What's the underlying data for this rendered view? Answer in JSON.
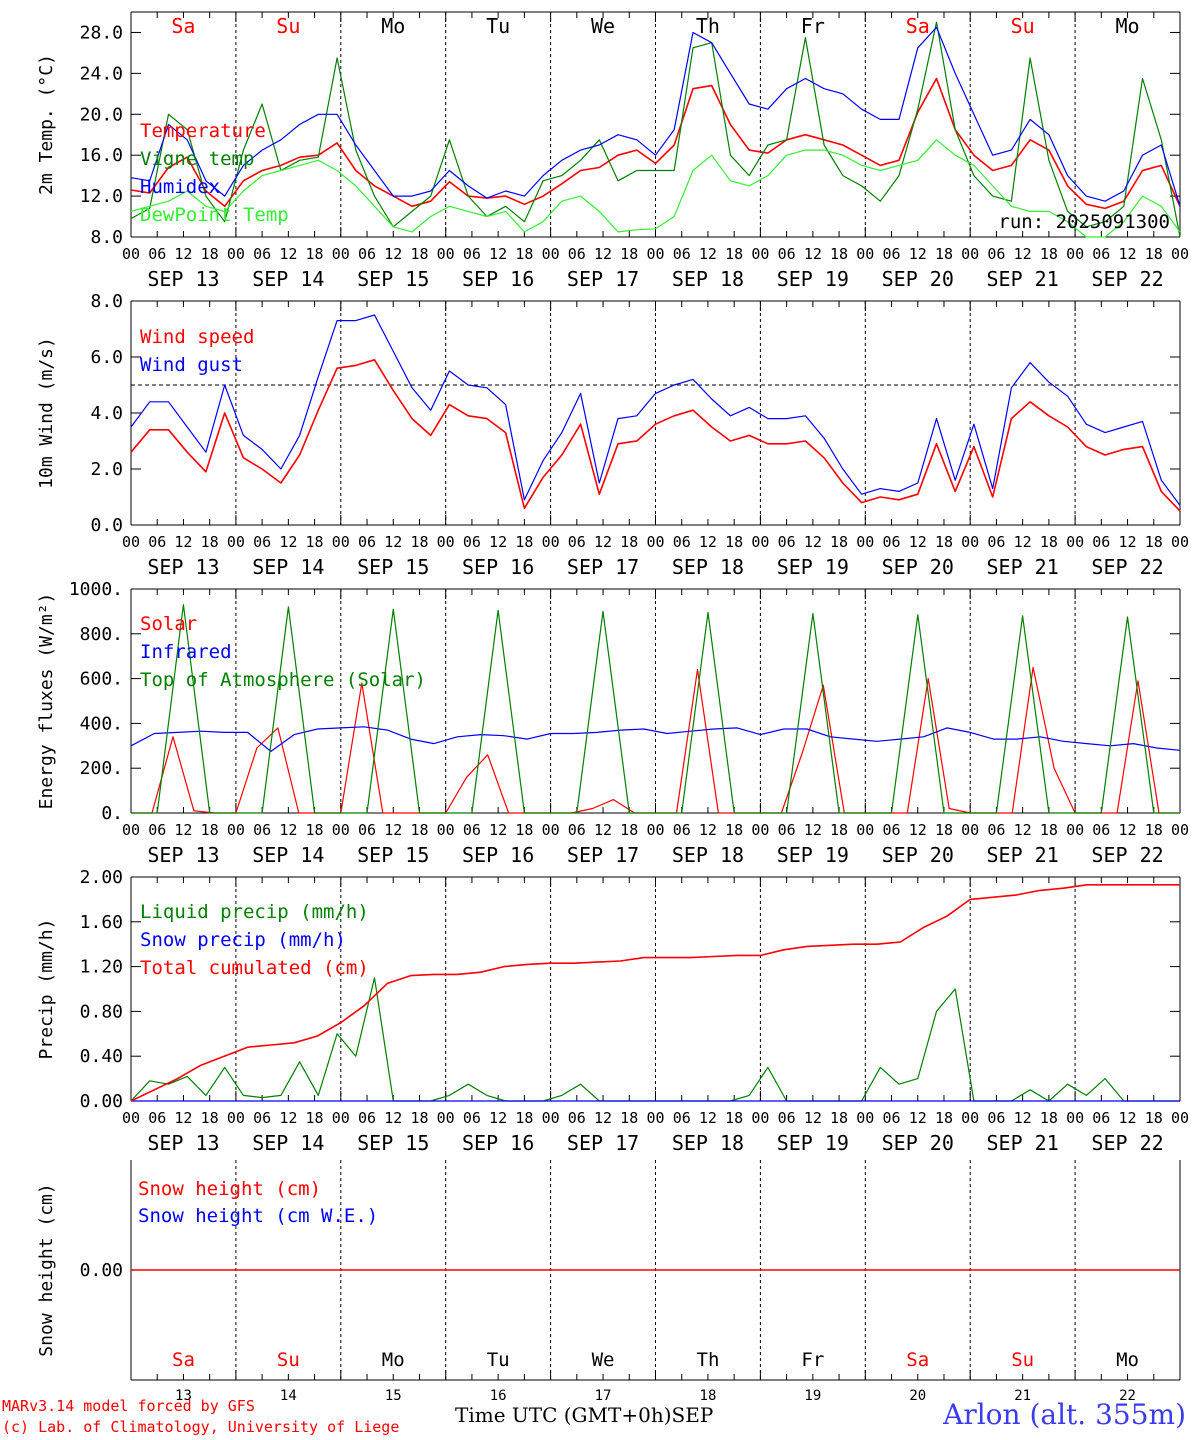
{
  "station": "Arlon (alt. 355m)",
  "credits": [
    "MARv3.14 model forced by GFS",
    "(c) Lab. of Climatology, University of Liege"
  ],
  "x_axis_title": "Time UTC (GMT+0h)",
  "month_label": "SEP",
  "hour_ticks": [
    "00",
    "06",
    "12",
    "18"
  ],
  "days": [
    {
      "date": "SEP 13",
      "num": "13",
      "abbr": "Sa",
      "weekend": true
    },
    {
      "date": "SEP 14",
      "num": "14",
      "abbr": "Su",
      "weekend": true
    },
    {
      "date": "SEP 15",
      "num": "15",
      "abbr": "Mo",
      "weekend": false
    },
    {
      "date": "SEP 16",
      "num": "16",
      "abbr": "Tu",
      "weekend": false
    },
    {
      "date": "SEP 17",
      "num": "17",
      "abbr": "We",
      "weekend": false
    },
    {
      "date": "SEP 18",
      "num": "18",
      "abbr": "Th",
      "weekend": false
    },
    {
      "date": "SEP 19",
      "num": "19",
      "abbr": "Fr",
      "weekend": false
    },
    {
      "date": "SEP 20",
      "num": "20",
      "abbr": "Sa",
      "weekend": true
    },
    {
      "date": "SEP 21",
      "num": "21",
      "abbr": "Su",
      "weekend": true
    },
    {
      "date": "SEP 22",
      "num": "22",
      "abbr": "Mo",
      "weekend": false
    }
  ],
  "colors": {
    "red": "#ff0000",
    "green": "#008000",
    "lightgreen": "#33ee33",
    "blue": "#0000ff",
    "black": "#000000"
  },
  "chart_data": [
    {
      "type": "line",
      "ylabel": "2m Temp. (°C)",
      "ylim": [
        8,
        30
      ],
      "yticks": [
        "8.0",
        "12.0",
        "16.0",
        "20.0",
        "24.0",
        "28.0"
      ],
      "ytick_values": [
        8,
        12,
        16,
        20,
        24,
        28
      ],
      "annotation": "run: 2025091300",
      "show_day_abbr_top": true,
      "x_step_hours": 6,
      "series": [
        {
          "name": "Temperature",
          "color": "red",
          "values": [
            12.6,
            12.3,
            14.8,
            15.8,
            12.5,
            11.0,
            13.5,
            14.5,
            15.0,
            15.8,
            16.0,
            17.2,
            14.5,
            13.0,
            12.0,
            11.0,
            11.5,
            13.4,
            12.0,
            11.8,
            12.0,
            11.2,
            12.0,
            13.2,
            14.5,
            14.8,
            16.0,
            16.5,
            15.2,
            17.0,
            22.5,
            22.8,
            19.0,
            16.5,
            16.2,
            17.5,
            18.0,
            17.5,
            17.0,
            16.0,
            15.0,
            15.5,
            20.2,
            23.5,
            18.5,
            16.0,
            14.5,
            15.0,
            17.5,
            16.5,
            13.0,
            11.2,
            10.8,
            11.5,
            14.5,
            15.0,
            11.0
          ]
        },
        {
          "name": "Vigne temp",
          "color": "green",
          "values": [
            9.8,
            10.8,
            20.0,
            18.5,
            12.0,
            9.5,
            16.5,
            21.0,
            14.5,
            15.5,
            15.8,
            25.5,
            16.5,
            12.0,
            9.0,
            10.5,
            12.0,
            17.5,
            12.0,
            10.0,
            11.0,
            9.5,
            13.5,
            14.0,
            15.5,
            17.5,
            13.5,
            14.5,
            14.5,
            14.5,
            26.5,
            27.0,
            16.0,
            14.0,
            17.0,
            17.5,
            27.5,
            17.0,
            14.0,
            13.0,
            11.5,
            14.0,
            20.5,
            29.0,
            18.5,
            14.0,
            12.0,
            11.5,
            25.5,
            15.5,
            10.5,
            9.0,
            9.5,
            11.0,
            23.5,
            17.5,
            8.0
          ]
        },
        {
          "name": "Humidex",
          "color": "blue",
          "values": [
            13.8,
            13.5,
            19.0,
            17.5,
            13.5,
            12.0,
            15.0,
            16.5,
            17.5,
            19.0,
            20.0,
            20.0,
            17.0,
            14.5,
            12.0,
            12.0,
            12.5,
            14.5,
            13.0,
            11.8,
            12.5,
            12.0,
            14.0,
            15.5,
            16.5,
            17.0,
            18.0,
            17.5,
            16.0,
            18.5,
            28.0,
            27.0,
            24.0,
            21.0,
            20.5,
            22.5,
            23.5,
            22.5,
            22.0,
            20.5,
            19.5,
            19.5,
            26.5,
            28.5,
            24.0,
            20.0,
            16.0,
            16.5,
            19.5,
            18.0,
            14.0,
            12.0,
            11.5,
            12.5,
            16.0,
            17.0,
            11.0
          ]
        },
        {
          "name": "DewPoint Temp",
          "color": "lightgreen",
          "values": [
            10.5,
            11.0,
            11.5,
            12.5,
            11.0,
            10.5,
            12.5,
            14.0,
            14.5,
            15.0,
            15.5,
            14.5,
            13.0,
            11.0,
            9.0,
            8.5,
            10.0,
            11.0,
            10.5,
            10.0,
            10.5,
            8.5,
            9.5,
            11.5,
            12.0,
            10.5,
            8.5,
            8.7,
            8.8,
            10.0,
            14.5,
            16.0,
            13.5,
            13.0,
            14.0,
            16.0,
            16.5,
            16.5,
            16.0,
            15.0,
            14.5,
            15.0,
            15.5,
            17.5,
            16.0,
            15.0,
            13.0,
            11.0,
            10.5,
            10.5,
            9.5,
            8.0,
            8.0,
            9.5,
            12.0,
            11.0,
            8.5
          ]
        }
      ]
    },
    {
      "type": "line",
      "ylabel": "10m Wind (m/s)",
      "ylim": [
        0,
        8
      ],
      "yticks": [
        "0.0",
        "2.0",
        "4.0",
        "6.0",
        "8.0"
      ],
      "ytick_values": [
        0,
        2,
        4,
        6,
        8
      ],
      "hline": 5,
      "show_day_abbr_top": false,
      "x_step_hours": 6,
      "series": [
        {
          "name": "Wind speed",
          "color": "red",
          "values": [
            2.6,
            3.4,
            3.4,
            2.6,
            1.9,
            4.0,
            2.4,
            2.0,
            1.5,
            2.5,
            4.1,
            5.6,
            5.7,
            5.9,
            4.8,
            3.8,
            3.2,
            4.3,
            3.9,
            3.8,
            3.3,
            0.6,
            1.7,
            2.5,
            3.6,
            1.1,
            2.9,
            3.0,
            3.6,
            3.9,
            4.1,
            3.5,
            3.0,
            3.2,
            2.9,
            2.9,
            3.0,
            2.4,
            1.5,
            0.8,
            1.0,
            0.9,
            1.1,
            2.9,
            1.2,
            2.8,
            1.0,
            3.8,
            4.4,
            3.9,
            3.5,
            2.8,
            2.5,
            2.7,
            2.8,
            1.2,
            0.5
          ]
        },
        {
          "name": "Wind gust",
          "color": "blue",
          "values": [
            3.5,
            4.4,
            4.4,
            3.5,
            2.6,
            5.0,
            3.2,
            2.7,
            2.0,
            3.2,
            5.3,
            7.3,
            7.3,
            7.5,
            6.2,
            4.9,
            4.1,
            5.5,
            5.0,
            4.9,
            4.3,
            0.9,
            2.3,
            3.3,
            4.7,
            1.5,
            3.8,
            3.9,
            4.7,
            5.0,
            5.2,
            4.5,
            3.9,
            4.2,
            3.8,
            3.8,
            3.9,
            3.1,
            2.0,
            1.1,
            1.3,
            1.2,
            1.5,
            3.8,
            1.6,
            3.6,
            1.3,
            4.9,
            5.8,
            5.1,
            4.6,
            3.6,
            3.3,
            3.5,
            3.7,
            1.6,
            0.7
          ]
        }
      ]
    },
    {
      "type": "line",
      "ylabel": "Energy fluxes (W/m²)",
      "ylim": [
        0,
        1000
      ],
      "yticks": [
        "0.",
        "200.",
        "400.",
        "600.",
        "800.",
        "1000."
      ],
      "ytick_values": [
        0,
        200,
        400,
        600,
        800,
        1000
      ],
      "show_day_abbr_top": false,
      "x_step_hours": 6,
      "series": [
        {
          "name": "Solar",
          "color": "red",
          "values": [
            0,
            0,
            340,
            10,
            0,
            0,
            290,
            380,
            0,
            0,
            0,
            580,
            0,
            0,
            0,
            0,
            160,
            260,
            0,
            0,
            0,
            0,
            20,
            60,
            0,
            0,
            0,
            640,
            0,
            0,
            0,
            0,
            270,
            570,
            0,
            0,
            0,
            0,
            600,
            20,
            0,
            0,
            0,
            650,
            200,
            0,
            0,
            0,
            590,
            0,
            0
          ]
        },
        {
          "name": "Infrared",
          "color": "blue",
          "values": [
            300,
            355,
            360,
            365,
            360,
            360,
            275,
            350,
            375,
            380,
            385,
            370,
            330,
            310,
            340,
            350,
            345,
            330,
            355,
            355,
            360,
            370,
            375,
            355,
            365,
            375,
            380,
            350,
            375,
            375,
            340,
            330,
            320,
            330,
            340,
            380,
            360,
            330,
            330,
            340,
            320,
            310,
            300,
            310,
            290,
            280
          ]
        },
        {
          "name": "Top of Atmosphere (Solar)",
          "color": "green",
          "values": [
            0,
            0,
            930,
            0,
            0,
            0,
            920,
            0,
            0,
            0,
            910,
            0,
            0,
            0,
            905,
            0,
            0,
            0,
            900,
            0,
            0,
            0,
            895,
            0,
            0,
            0,
            890,
            0,
            0,
            0,
            885,
            0,
            0,
            0,
            880,
            0,
            0,
            0,
            875,
            0,
            0
          ]
        }
      ]
    },
    {
      "type": "line",
      "ylabel": "Precip (mm/h)",
      "ylim": [
        0,
        2
      ],
      "yticks": [
        "0.00",
        "0.40",
        "0.80",
        "1.20",
        "1.60",
        "2.00"
      ],
      "ytick_values": [
        0,
        0.4,
        0.8,
        1.2,
        1.6,
        2.0
      ],
      "show_day_abbr_top": false,
      "x_step_hours": 6,
      "series": [
        {
          "name": "Liquid precip (mm/h)",
          "color": "green",
          "values": [
            0,
            0.18,
            0.15,
            0.22,
            0.05,
            0.3,
            0.05,
            0.03,
            0.05,
            0.35,
            0.05,
            0.6,
            0.4,
            1.1,
            0,
            0,
            0,
            0.05,
            0.15,
            0.05,
            0,
            0,
            0,
            0.05,
            0.15,
            0,
            0,
            0,
            0,
            0,
            0,
            0,
            0,
            0.05,
            0.3,
            0,
            0,
            0,
            0,
            0,
            0.3,
            0.15,
            0.2,
            0.8,
            1.0,
            0,
            0,
            0,
            0.1,
            0,
            0.15,
            0.05,
            0.2,
            0,
            0,
            0,
            0
          ]
        },
        {
          "name": "Snow precip (mm/h)",
          "color": "blue",
          "values": [
            0,
            0,
            0,
            0,
            0,
            0,
            0,
            0,
            0,
            0,
            0,
            0,
            0,
            0,
            0,
            0,
            0,
            0,
            0,
            0,
            0,
            0,
            0,
            0,
            0,
            0,
            0,
            0,
            0,
            0,
            0,
            0,
            0,
            0,
            0,
            0,
            0,
            0,
            0,
            0,
            0,
            0,
            0,
            0,
            0,
            0,
            0,
            0,
            0,
            0,
            0,
            0,
            0,
            0,
            0,
            0,
            0
          ]
        },
        {
          "name": "Total cumulated (cm)",
          "color": "red",
          "values": [
            0,
            0.1,
            0.2,
            0.32,
            0.4,
            0.48,
            0.5,
            0.52,
            0.58,
            0.7,
            0.85,
            1.05,
            1.12,
            1.13,
            1.13,
            1.15,
            1.2,
            1.22,
            1.23,
            1.23,
            1.24,
            1.25,
            1.28,
            1.28,
            1.28,
            1.29,
            1.3,
            1.3,
            1.35,
            1.38,
            1.39,
            1.4,
            1.4,
            1.42,
            1.55,
            1.65,
            1.8,
            1.82,
            1.84,
            1.88,
            1.9,
            1.93,
            1.93,
            1.93,
            1.93,
            1.93
          ]
        }
      ]
    },
    {
      "type": "line",
      "ylabel": "Snow height (cm)",
      "ylim": [
        -1,
        1
      ],
      "yticks": [
        "0.00"
      ],
      "ytick_values": [
        0
      ],
      "show_day_abbr_bottom": true,
      "x_step_hours": 6,
      "series": [
        {
          "name": "Snow height (cm)",
          "color": "red",
          "values": [
            0,
            0
          ]
        },
        {
          "name": "Snow height (cm W.E.)",
          "color": "blue",
          "values": []
        }
      ]
    }
  ]
}
